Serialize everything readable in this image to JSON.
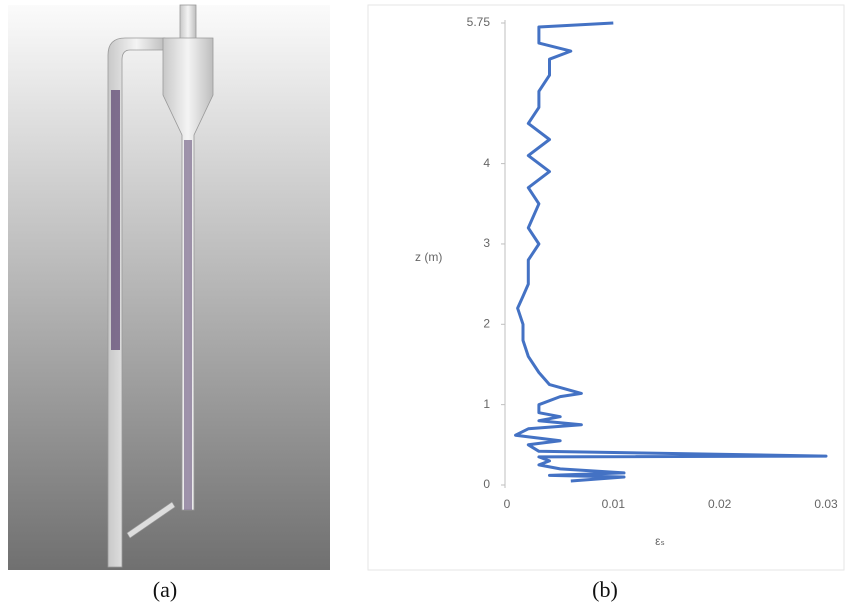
{
  "chart_data": {
    "type": "line",
    "x_label": "εₛ",
    "y_label": "z (m)",
    "x": [
      0.006,
      0.011,
      0.004,
      0.011,
      0.005,
      0.003,
      0.004,
      0.003,
      0.03,
      0.003,
      0.002,
      0.005,
      0.0008,
      0.002,
      0.007,
      0.003,
      0.005,
      0.003,
      0.003,
      0.005,
      0.007,
      0.004,
      0.003,
      0.002,
      0.0015,
      0.0015,
      0.001,
      0.0015,
      0.002,
      0.002,
      0.003,
      0.002,
      0.003,
      0.002,
      0.004,
      0.002,
      0.004,
      0.002,
      0.003,
      0.003,
      0.004,
      0.004,
      0.006,
      0.003,
      0.003,
      0.003,
      0.01
    ],
    "values": [
      0.05,
      0.1,
      0.12,
      0.15,
      0.2,
      0.25,
      0.3,
      0.35,
      0.36,
      0.42,
      0.5,
      0.55,
      0.62,
      0.7,
      0.75,
      0.8,
      0.85,
      0.9,
      1.0,
      1.1,
      1.14,
      1.25,
      1.4,
      1.6,
      1.8,
      2.0,
      2.2,
      2.35,
      2.5,
      2.8,
      3.0,
      3.2,
      3.5,
      3.7,
      3.9,
      4.1,
      4.3,
      4.5,
      4.7,
      4.9,
      5.1,
      5.3,
      5.4,
      5.5,
      5.6,
      5.7,
      5.75
    ],
    "color": "#4472c4",
    "xlim": [
      0,
      0.03
    ],
    "xticks": [
      0,
      0.01,
      0.02,
      0.03
    ],
    "ylim": [
      0,
      5.75
    ],
    "yticks": [
      0,
      1,
      2,
      3,
      4,
      5.75
    ]
  },
  "captions": [
    "(a)",
    "(b)"
  ]
}
